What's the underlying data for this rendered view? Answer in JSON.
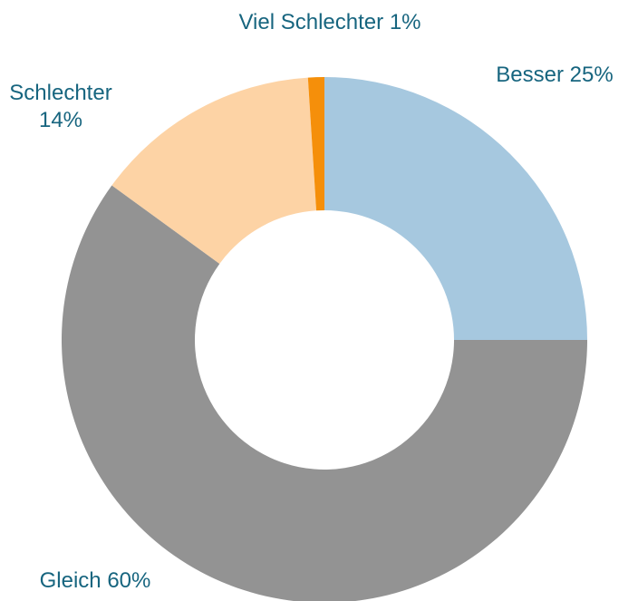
{
  "chart_data": {
    "type": "donut",
    "categories": [
      "Besser",
      "Gleich",
      "Schlechter",
      "Viel Schlechter"
    ],
    "values": [
      25,
      60,
      14,
      1
    ],
    "value_labels": [
      "25%",
      "60%",
      "14%",
      "1%"
    ],
    "colors": [
      "#a6c8df",
      "#939393",
      "#fdd3a5",
      "#f58f0a"
    ]
  }
}
